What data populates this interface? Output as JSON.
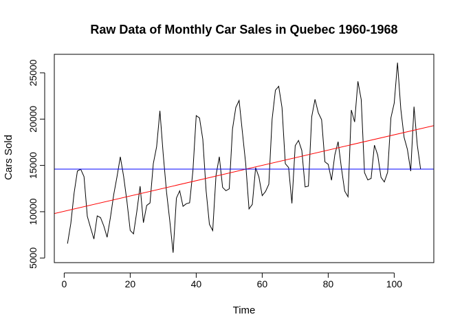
{
  "chart_data": {
    "type": "line",
    "title": "Raw Data of Monthly Car Sales in Quebec 1960-1968",
    "xlabel": "Time",
    "ylabel": "Cars Sold",
    "xlim": [
      -3,
      112
    ],
    "ylim": [
      4500,
      27000
    ],
    "xticks": [
      0,
      20,
      40,
      60,
      80,
      100
    ],
    "yticks": [
      5000,
      10000,
      15000,
      20000,
      25000
    ],
    "grid": false,
    "legend": "none",
    "series": [
      {
        "color": "#000000",
        "x": [
          1,
          2,
          3,
          4,
          5,
          6,
          7,
          8,
          9,
          10,
          11,
          12,
          13,
          14,
          15,
          16,
          17,
          18,
          19,
          20,
          21,
          22,
          23,
          24,
          25,
          26,
          27,
          28,
          29,
          30,
          31,
          32,
          33,
          34,
          35,
          36,
          37,
          38,
          39,
          40,
          41,
          42,
          43,
          44,
          45,
          46,
          47,
          48,
          49,
          50,
          51,
          52,
          53,
          54,
          55,
          56,
          57,
          58,
          59,
          60,
          61,
          62,
          63,
          64,
          65,
          66,
          67,
          68,
          69,
          70,
          71,
          72,
          73,
          74,
          75,
          76,
          77,
          78,
          79,
          80,
          81,
          82,
          83,
          84,
          85,
          86,
          87,
          88,
          89,
          90,
          91,
          92,
          93,
          94,
          95,
          96,
          97,
          98,
          99,
          100,
          101,
          102,
          103,
          104,
          105,
          106,
          107,
          108
        ],
        "y": [
          6550,
          8728,
          12026,
          14395,
          14587,
          13791,
          9498,
          8251,
          7049,
          9545,
          9364,
          8456,
          7237,
          9374,
          11837,
          13784,
          15926,
          13821,
          11143,
          7975,
          7610,
          10015,
          12759,
          8816,
          10677,
          10947,
          15200,
          17010,
          20900,
          16205,
          12143,
          8997,
          5568,
          11474,
          12256,
          10583,
          10862,
          10965,
          14405,
          20379,
          20128,
          17816,
          12268,
          8642,
          7962,
          13932,
          15936,
          12628,
          12267,
          12470,
          18944,
          21259,
          22015,
          18581,
          15175,
          10306,
          10792,
          14752,
          13754,
          11738,
          12181,
          12965,
          19990,
          23125,
          23541,
          21247,
          15189,
          14767,
          10895,
          17130,
          17697,
          16611,
          12674,
          12760,
          20249,
          22135,
          20677,
          19933,
          15388,
          15113,
          13401,
          16135,
          17562,
          14720,
          12225,
          11608,
          20985,
          19692,
          24081,
          22114,
          14220,
          13434,
          13598,
          17187,
          16119,
          13713,
          13210,
          14251,
          20139,
          21725,
          26099,
          21084,
          18024,
          16722,
          14385,
          21342,
          17180,
          14577
        ]
      },
      {
        "color": "#ff0000",
        "kind": "trend",
        "x": [
          -3,
          112
        ],
        "y": [
          9800,
          19300
        ]
      },
      {
        "color": "#0000ff",
        "kind": "mean",
        "x": [
          -3,
          112
        ],
        "y": [
          14595,
          14595
        ]
      }
    ]
  }
}
